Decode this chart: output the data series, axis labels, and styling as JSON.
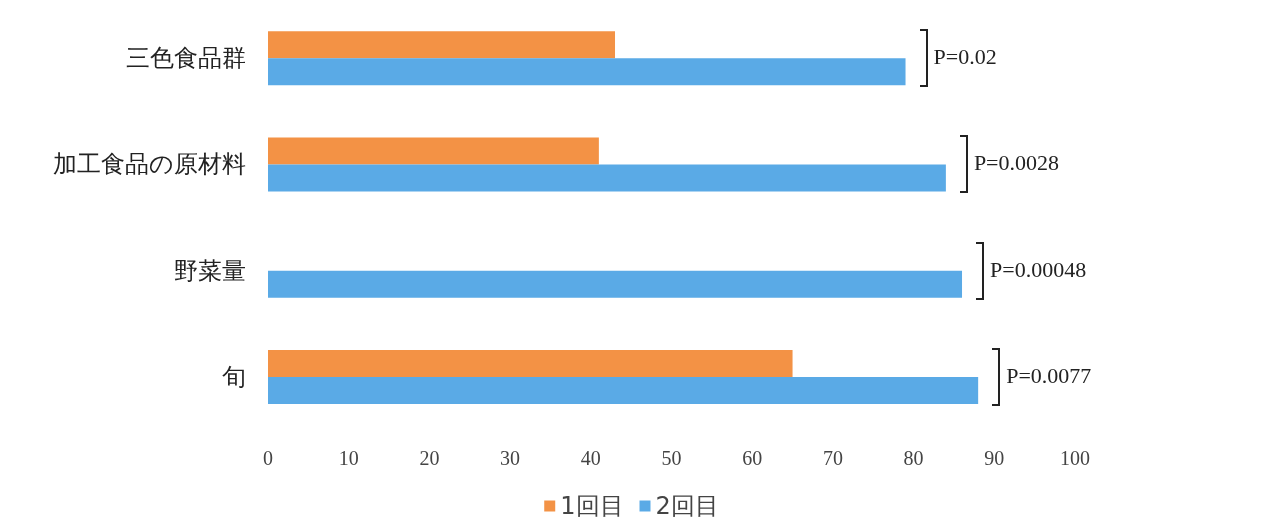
{
  "chart_data": {
    "type": "bar",
    "orientation": "horizontal",
    "categories": [
      "三色食品群",
      "加工食品の原材料",
      "野菜量",
      "旬"
    ],
    "series": [
      {
        "name": "1回目",
        "color": "#f39245",
        "values": [
          43,
          41,
          null,
          65
        ]
      },
      {
        "name": "2回目",
        "color": "#5aaae6",
        "values": [
          79,
          84,
          86,
          88
        ]
      }
    ],
    "xlim": [
      0,
      100
    ],
    "xticks": [
      0,
      10,
      20,
      30,
      40,
      50,
      60,
      70,
      80,
      90,
      100
    ],
    "grid": false,
    "legend": "bottom",
    "annotations": [
      "P=0.02",
      "P=0.0028",
      "P=0.00048",
      "P=0.0077"
    ]
  }
}
